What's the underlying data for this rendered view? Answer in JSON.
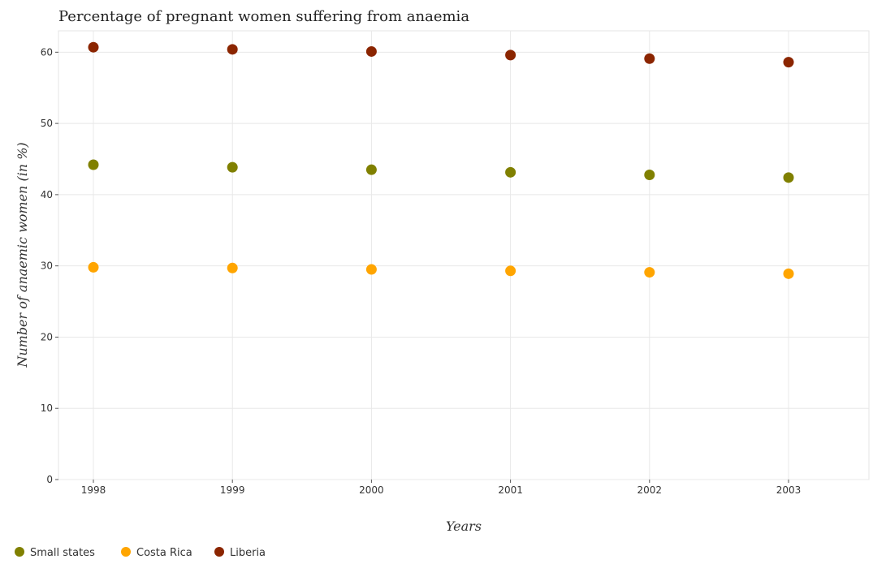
{
  "chart_data": {
    "type": "scatter",
    "title": "Percentage of pregnant women suffering from anaemia",
    "xlabel": "Years",
    "ylabel": "Number of anaemic women (in %)",
    "categories": [
      "1998",
      "1999",
      "2000",
      "2001",
      "2002",
      "2003"
    ],
    "ylim": [
      0,
      63
    ],
    "yticks": [
      0,
      10,
      20,
      30,
      40,
      50,
      60
    ],
    "grid": true,
    "legend_position": "bottom-left",
    "series": [
      {
        "name": "Small states",
        "color": "#808000",
        "values": [
          44.2,
          43.85,
          43.5,
          43.14,
          42.78,
          42.4
        ]
      },
      {
        "name": "Costa Rica",
        "color": "#FFA500",
        "values": [
          29.8,
          29.7,
          29.5,
          29.3,
          29.1,
          28.9
        ]
      },
      {
        "name": "Liberia",
        "color": "#8B2500",
        "values": [
          60.7,
          60.4,
          60.1,
          59.6,
          59.1,
          58.6
        ]
      }
    ]
  }
}
